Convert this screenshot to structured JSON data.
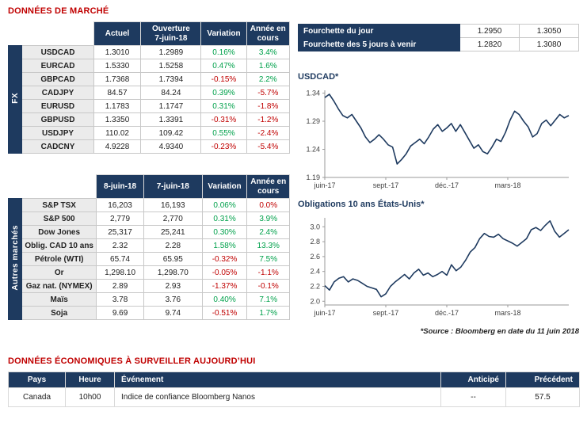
{
  "market_title": "DONNÉES DE MARCHÉ",
  "fx": {
    "group": "FX",
    "headers": [
      "Actuel",
      "Ouverture\n7-juin-18",
      "Variation",
      "Année en\ncours"
    ],
    "rows": [
      [
        "USDCAD",
        "1.3010",
        "1.2989",
        "0.16%",
        "3.4%"
      ],
      [
        "EURCAD",
        "1.5330",
        "1.5258",
        "0.47%",
        "1.6%"
      ],
      [
        "GBPCAD",
        "1.7368",
        "1.7394",
        "-0.15%",
        "2.2%"
      ],
      [
        "CADJPY",
        "84.57",
        "84.24",
        "0.39%",
        "-5.7%"
      ],
      [
        "EURUSD",
        "1.1783",
        "1.1747",
        "0.31%",
        "-1.8%"
      ],
      [
        "GBPUSD",
        "1.3350",
        "1.3391",
        "-0.31%",
        "-1.2%"
      ],
      [
        "USDJPY",
        "110.02",
        "109.42",
        "0.55%",
        "-2.4%"
      ],
      [
        "CADCNY",
        "4.9228",
        "4.9340",
        "-0.23%",
        "-5.4%"
      ]
    ]
  },
  "markets": {
    "group": "Autres marchés",
    "headers": [
      "8-juin-18",
      "7-juin-18",
      "Variation",
      "Année en\ncours"
    ],
    "rows": [
      [
        "S&P TSX",
        "16,203",
        "16,193",
        "0.06%",
        "0.0%"
      ],
      [
        "S&P 500",
        "2,779",
        "2,770",
        "0.31%",
        "3.9%"
      ],
      [
        "Dow Jones",
        "25,317",
        "25,241",
        "0.30%",
        "2.4%"
      ],
      [
        "Oblig. CAD 10 ans",
        "2.32",
        "2.28",
        "1.58%",
        "13.3%"
      ],
      [
        "Pétrole (WTI)",
        "65.74",
        "65.95",
        "-0.32%",
        "7.5%"
      ],
      [
        "Or",
        "1,298.10",
        "1,298.70",
        "-0.05%",
        "-1.1%"
      ],
      [
        "Gaz nat. (NYMEX)",
        "2.89",
        "2.93",
        "-1.37%",
        "-0.1%"
      ],
      [
        "Maïs",
        "3.78",
        "3.76",
        "0.40%",
        "7.1%"
      ],
      [
        "Soja",
        "9.69",
        "9.74",
        "-0.51%",
        "1.7%"
      ]
    ]
  },
  "ranges": [
    {
      "label": "Fourchette du jour",
      "low": "1.2950",
      "high": "1.3050"
    },
    {
      "label": "Fourchette des 5 jours à venir",
      "low": "1.2820",
      "high": "1.3080"
    }
  ],
  "chart_data": [
    {
      "type": "line",
      "title": "USDCAD*",
      "x_ticks": [
        "juin-17",
        "sept.-17",
        "déc.-17",
        "mars-18"
      ],
      "y_ticks": [
        "1.19",
        "1.24",
        "1.29",
        "1.34"
      ],
      "ylim": [
        1.19,
        1.345
      ],
      "line_color": "#1e3a5f",
      "values": [
        1.332,
        1.338,
        1.326,
        1.312,
        1.3,
        1.296,
        1.302,
        1.29,
        1.278,
        1.262,
        1.252,
        1.258,
        1.266,
        1.258,
        1.248,
        1.244,
        1.214,
        1.222,
        1.232,
        1.246,
        1.252,
        1.258,
        1.25,
        1.262,
        1.276,
        1.284,
        1.272,
        1.278,
        1.286,
        1.272,
        1.284,
        1.27,
        1.256,
        1.242,
        1.248,
        1.236,
        1.232,
        1.244,
        1.258,
        1.254,
        1.27,
        1.292,
        1.308,
        1.302,
        1.29,
        1.28,
        1.262,
        1.268,
        1.286,
        1.292,
        1.282,
        1.292,
        1.302,
        1.296,
        1.3
      ]
    },
    {
      "type": "line",
      "title": "Obligations 10 ans États-Unis*",
      "x_ticks": [
        "juin-17",
        "sept.-17",
        "déc.-17",
        "mars-18"
      ],
      "y_ticks": [
        "2.0",
        "2.2",
        "2.4",
        "2.6",
        "2.8",
        "3.0"
      ],
      "ylim": [
        1.95,
        3.12
      ],
      "line_color": "#1e3a5f",
      "values": [
        2.21,
        2.15,
        2.26,
        2.31,
        2.33,
        2.26,
        2.3,
        2.28,
        2.24,
        2.2,
        2.18,
        2.16,
        2.06,
        2.1,
        2.2,
        2.26,
        2.31,
        2.36,
        2.3,
        2.38,
        2.43,
        2.35,
        2.38,
        2.33,
        2.36,
        2.4,
        2.35,
        2.49,
        2.41,
        2.46,
        2.55,
        2.66,
        2.72,
        2.84,
        2.91,
        2.87,
        2.86,
        2.9,
        2.84,
        2.81,
        2.78,
        2.74,
        2.79,
        2.84,
        2.96,
        2.99,
        2.95,
        3.02,
        3.08,
        2.94,
        2.86,
        2.91,
        2.96
      ]
    }
  ],
  "source_note": "*Source : Bloomberg en date du 11 juin 2018",
  "econ_title": "DONNÉES ÉCONOMIQUES À SURVEILLER AUJOURD’HUI",
  "econ": {
    "headers": [
      "Pays",
      "Heure",
      "Événement",
      "Anticipé",
      "Précédent"
    ],
    "rows": [
      [
        "Canada",
        "10h00",
        "Indice de confiance Bloomberg Nanos",
        "--",
        "57.5"
      ]
    ]
  },
  "colors": {
    "navy": "#1e3a5f",
    "title_red": "#c00000",
    "positive_green": "#00a14b",
    "negative_red": "#c00000",
    "chart_line": "#1e3a5f"
  }
}
